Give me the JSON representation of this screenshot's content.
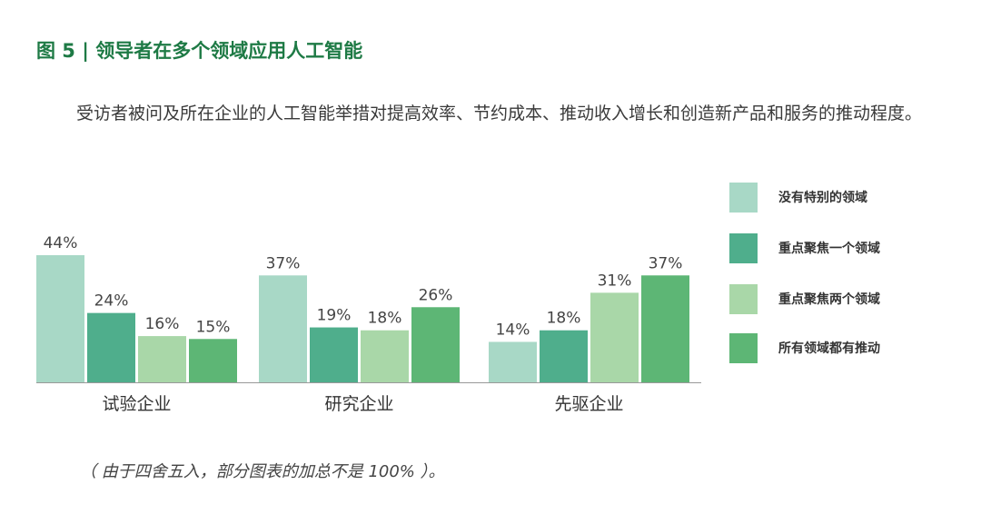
{
  "title": "图 5 | 领导者在多个领域应用人工智能",
  "subtitle": "受访者被问及所在企业的人工智能举措对提高效率、节约成本、推动收入增长和创造新产品和服务的推动程度。",
  "footnote": "（ 由于四舍五入，部分图表的加总不是 100% ）。",
  "colors": {
    "title": "#1e7a45",
    "series": [
      "#a8d8c6",
      "#4fae8c",
      "#a9d7a8",
      "#5db675"
    ]
  },
  "chart_data": {
    "type": "bar",
    "categories": [
      "试验企业",
      "研究企业",
      "先驱企业"
    ],
    "series": [
      {
        "name": "没有特别的领域",
        "values": [
          44,
          37,
          14
        ],
        "labels": [
          "44%",
          "37%",
          "14%"
        ]
      },
      {
        "name": "重点聚焦一个领域",
        "values": [
          24,
          19,
          18
        ],
        "labels": [
          "24%",
          "19%",
          "18%"
        ]
      },
      {
        "name": "重点聚焦两个领域",
        "values": [
          16,
          18,
          31
        ],
        "labels": [
          "16%",
          "18%",
          "31%"
        ]
      },
      {
        "name": "所有领域都有推动",
        "values": [
          15,
          26,
          37
        ],
        "labels": [
          "15%",
          "26%",
          "37%"
        ]
      }
    ],
    "ylim": [
      0,
      44
    ],
    "legend_position": "right"
  }
}
